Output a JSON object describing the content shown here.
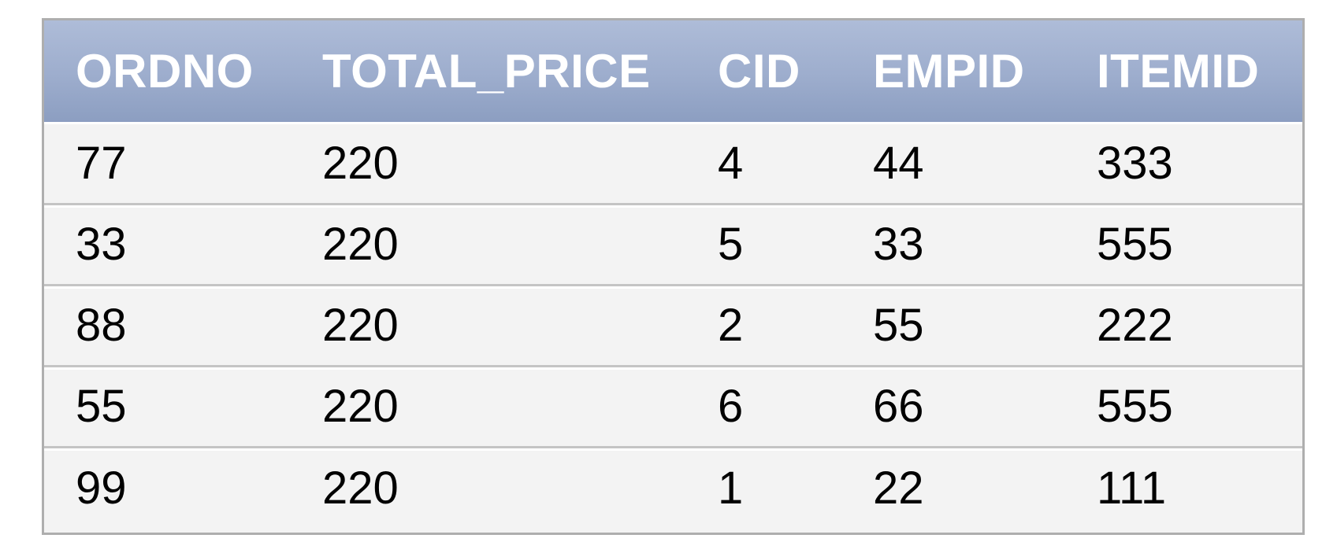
{
  "table": {
    "columns": [
      "ORDNO",
      "TOTAL_PRICE",
      "CID",
      "EMPID",
      "ITEMID"
    ],
    "rows": [
      [
        "77",
        "220",
        "4",
        "44",
        "333"
      ],
      [
        "33",
        "220",
        "5",
        "33",
        "555"
      ],
      [
        "88",
        "220",
        "2",
        "55",
        "222"
      ],
      [
        "55",
        "220",
        "6",
        "66",
        "555"
      ],
      [
        "99",
        "220",
        "1",
        "22",
        "111"
      ]
    ]
  },
  "colors": {
    "header_top": "#aebcd8",
    "header_bottom": "#8c9ec1",
    "header_text": "#ffffff",
    "row_background": "#f3f3f3",
    "border": "#aeaeae"
  }
}
